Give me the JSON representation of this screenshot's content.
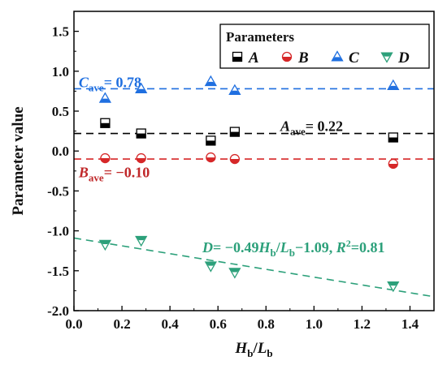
{
  "chart_data": {
    "type": "scatter",
    "xlabel": {
      "main": "H",
      "sub": "b",
      "sep": "/",
      "main2": "L",
      "sub2": "b"
    },
    "ylabel": "Parameter value",
    "xlim": [
      0.0,
      1.5
    ],
    "ylim": [
      -2.0,
      1.75
    ],
    "xticks": [
      0.0,
      0.2,
      0.4,
      0.6,
      0.8,
      1.0,
      1.2,
      1.4
    ],
    "xtick_labels": [
      "0.0",
      "0.2",
      "0.4",
      "0.6",
      "0.8",
      "1.0",
      "1.2",
      "1.4"
    ],
    "yticks": [
      -2.0,
      -1.5,
      -1.0,
      -0.5,
      0.0,
      0.5,
      1.0,
      1.5
    ],
    "ytick_labels": [
      "-2.0",
      "-1.5",
      "-1.0",
      "-0.5",
      "0.0",
      "0.5",
      "1.0",
      "1.5"
    ],
    "grid": false,
    "legend": {
      "title": "Parameters",
      "position": "top-right",
      "columns": 4
    },
    "series": [
      {
        "name": "A",
        "marker": "square-half",
        "color": "#000000",
        "x": [
          0.13,
          0.28,
          0.57,
          0.67,
          1.33
        ],
        "y": [
          0.35,
          0.22,
          0.13,
          0.24,
          0.17
        ]
      },
      {
        "name": "B",
        "marker": "circle-half",
        "color": "#d62728",
        "x": [
          0.13,
          0.28,
          0.57,
          0.67,
          1.33
        ],
        "y": [
          -0.09,
          -0.09,
          -0.08,
          -0.1,
          -0.16
        ]
      },
      {
        "name": "C",
        "marker": "triangle-up-half",
        "color": "#1f6fe0",
        "x": [
          0.13,
          0.28,
          0.57,
          0.67,
          1.33
        ],
        "y": [
          0.66,
          0.78,
          0.87,
          0.76,
          0.82
        ]
      },
      {
        "name": "D",
        "marker": "triangle-down-half",
        "color": "#2ca07a",
        "x": [
          0.13,
          0.28,
          0.57,
          0.67,
          1.33
        ],
        "y": [
          -1.17,
          -1.12,
          -1.44,
          -1.52,
          -1.69
        ]
      }
    ],
    "reference_lines": [
      {
        "series": "C",
        "y": 0.78,
        "color": "#1f6fe0",
        "dash": "dashed"
      },
      {
        "series": "A",
        "y": 0.22,
        "color": "#000000",
        "dash": "dashed"
      },
      {
        "series": "B",
        "y": -0.1,
        "color": "#d62728",
        "dash": "dashed"
      }
    ],
    "fit_line": {
      "series": "D",
      "slope": -0.49,
      "intercept": -1.09,
      "color": "#2ca07a",
      "dash": "dashed"
    },
    "annotations": [
      {
        "id": "c-ave",
        "var": "C",
        "sub": "ave",
        "text": "= 0.78",
        "color": "#1f6fe0",
        "x": 0.02,
        "y": 0.8
      },
      {
        "id": "a-ave",
        "var": "A",
        "sub": "ave",
        "text": "= 0.22",
        "color": "#111111",
        "x": 0.86,
        "y": 0.25
      },
      {
        "id": "b-ave",
        "var": "B",
        "sub": "ave",
        "text": "= −0.10",
        "color": "#c0282a",
        "x": 0.02,
        "y": -0.33
      },
      {
        "id": "d-fit",
        "color": "#2ca07a",
        "x": 0.535,
        "y": -1.27,
        "parts": [
          "D",
          "= −0.49",
          "H",
          "b",
          "/",
          "L",
          "b",
          "−1.09, ",
          "R",
          "2",
          "=0.81"
        ]
      }
    ]
  }
}
